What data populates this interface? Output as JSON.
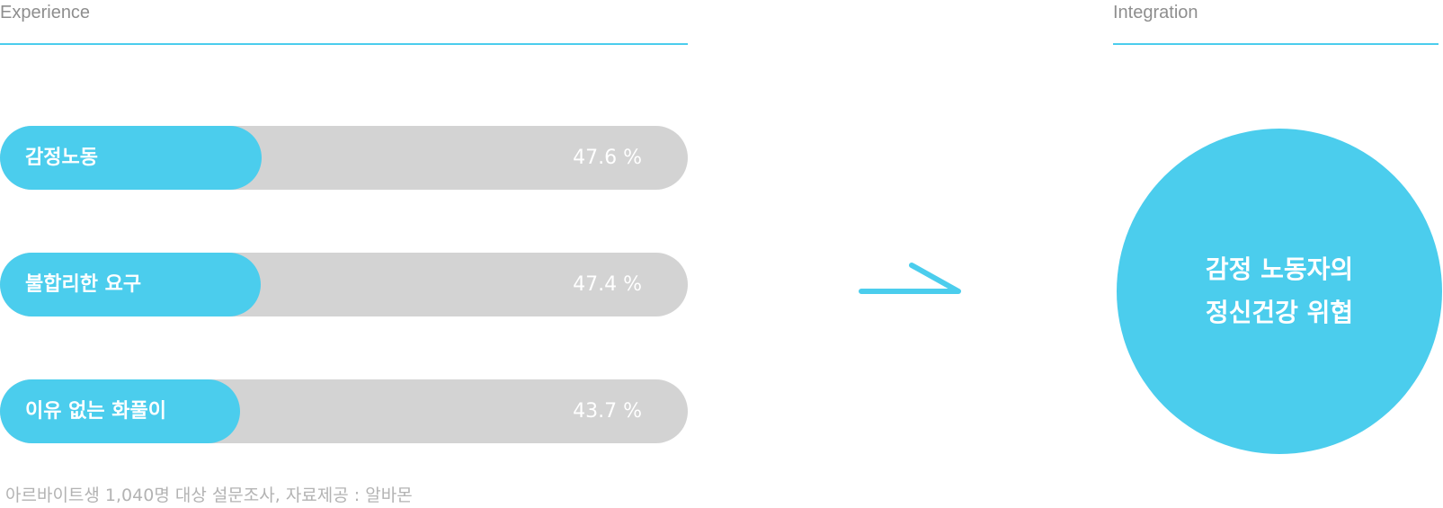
{
  "experience": {
    "title": "Experience"
  },
  "integration": {
    "title": "Integration",
    "circle_line1": "감정 노동자의",
    "circle_line2": "정신건강 위협"
  },
  "colors": {
    "accent": "#4bcded",
    "track": "#d3d3d3",
    "title_text": "#8e8e8e",
    "footnote_text": "#b3b3b3"
  },
  "icons": {
    "arrow": "arrow-right-icon"
  },
  "chart_data": {
    "type": "bar",
    "orientation": "horizontal",
    "categories": [
      "감정노동",
      "불합리한 요구",
      "이유 없는 화풀이"
    ],
    "values": [
      47.6,
      47.4,
      43.7
    ],
    "value_labels": [
      "47.6 %",
      "47.4 %",
      "43.7 %"
    ],
    "ylim": [
      0,
      100
    ],
    "grid": false,
    "title": "",
    "xlabel": "",
    "ylabel": ""
  },
  "footnote": "아르바이트생 1,040명 대상 설문조사, 자료제공 : 알바몬"
}
